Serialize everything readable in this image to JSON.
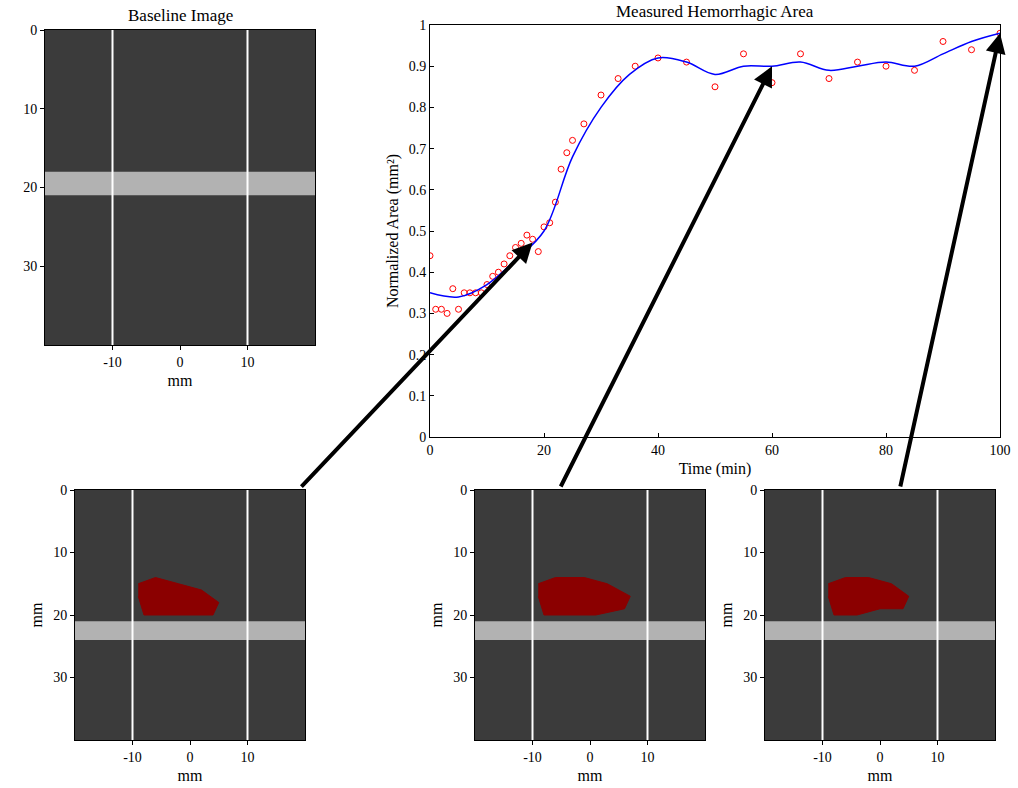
{
  "chart_data": [
    {
      "type": "line",
      "title": "Measured Hemorrhagic Area",
      "x_label": "Time (min)",
      "y_label": "Normalized Area (mm²)",
      "xlim": [
        0,
        100
      ],
      "ylim": [
        0,
        1
      ],
      "xticks": [
        0,
        20,
        40,
        60,
        80,
        100
      ],
      "yticks": [
        0,
        0.1,
        0.2,
        0.3,
        0.4,
        0.5,
        0.6,
        0.7,
        0.8,
        0.9,
        1
      ],
      "grid": false,
      "series": [
        {
          "type": "scatter",
          "marker": "circle-open",
          "color": "#ff0000",
          "x": [
            0,
            1,
            2,
            3,
            4,
            5,
            6,
            7,
            8,
            9,
            10,
            11,
            12,
            13,
            14,
            15,
            16,
            17,
            18,
            19,
            20,
            21,
            22,
            23,
            24,
            25,
            27,
            30,
            33,
            36,
            40,
            45,
            50,
            55,
            60,
            65,
            70,
            75,
            80,
            85,
            90,
            95,
            100
          ],
          "values": [
            0.44,
            0.31,
            0.31,
            0.3,
            0.36,
            0.31,
            0.35,
            0.35,
            0.35,
            0.35,
            0.37,
            0.39,
            0.4,
            0.42,
            0.44,
            0.46,
            0.47,
            0.49,
            0.48,
            0.45,
            0.51,
            0.52,
            0.57,
            0.65,
            0.69,
            0.72,
            0.76,
            0.83,
            0.87,
            0.9,
            0.92,
            0.91,
            0.85,
            0.93,
            0.86,
            0.93,
            0.87,
            0.91,
            0.9,
            0.89,
            0.96,
            0.94,
            0.98
          ]
        },
        {
          "type": "line",
          "line_style": "solid",
          "color": "#0000ff",
          "x": [
            0,
            5,
            10,
            15,
            20,
            25,
            30,
            35,
            40,
            45,
            50,
            55,
            60,
            65,
            70,
            75,
            80,
            85,
            90,
            95,
            100
          ],
          "values": [
            0.35,
            0.34,
            0.37,
            0.43,
            0.5,
            0.68,
            0.8,
            0.88,
            0.92,
            0.91,
            0.88,
            0.9,
            0.9,
            0.91,
            0.89,
            0.9,
            0.91,
            0.9,
            0.93,
            0.96,
            0.98
          ]
        }
      ]
    },
    {
      "type": "image",
      "title": "Baseline Image",
      "x_label": "mm",
      "xlim": [
        -20,
        20
      ],
      "ylim": [
        40,
        0
      ],
      "xticks": [
        -10,
        0,
        10
      ],
      "yticks": [
        0,
        10,
        20,
        30
      ],
      "lines_x": [
        -10,
        10
      ],
      "echo_band": [
        18,
        21
      ]
    },
    {
      "type": "image",
      "x_label": "mm",
      "y_label": "mm",
      "xlim": [
        -20,
        20
      ],
      "ylim": [
        40,
        0
      ],
      "xticks": [
        -10,
        0,
        10
      ],
      "yticks": [
        0,
        10,
        20,
        30
      ],
      "lines_x": [
        -10,
        10
      ],
      "echo_band": [
        21,
        24
      ],
      "time": 18,
      "region": {
        "color": "#8b0000",
        "x": [
          -9,
          -6,
          -2,
          2,
          5,
          4,
          0,
          -4,
          -8,
          -9
        ],
        "y": [
          15,
          14,
          15,
          16,
          18,
          20,
          20,
          20,
          20,
          17
        ]
      }
    },
    {
      "type": "image",
      "x_label": "mm",
      "y_label": "mm",
      "xlim": [
        -20,
        20
      ],
      "ylim": [
        40,
        0
      ],
      "xticks": [
        -10,
        0,
        10
      ],
      "yticks": [
        0,
        10,
        20,
        30
      ],
      "lines_x": [
        -10,
        10
      ],
      "echo_band": [
        21,
        24
      ],
      "time": 60,
      "region": {
        "color": "#8b0000",
        "x": [
          -9,
          -6,
          -1,
          3,
          7,
          6,
          1,
          -4,
          -8,
          -9
        ],
        "y": [
          15,
          14,
          14,
          15,
          17,
          19,
          20,
          20,
          20,
          17
        ]
      }
    },
    {
      "type": "image",
      "x_label": "mm",
      "y_label": "mm",
      "xlim": [
        -20,
        20
      ],
      "ylim": [
        40,
        0
      ],
      "xticks": [
        -10,
        0,
        10
      ],
      "yticks": [
        0,
        10,
        20,
        30
      ],
      "lines_x": [
        -10,
        10
      ],
      "echo_band": [
        21,
        24
      ],
      "time": 100,
      "region": {
        "color": "#8b0000",
        "x": [
          -9,
          -6,
          -2,
          2,
          5,
          4,
          0,
          -4,
          -8,
          -9
        ],
        "y": [
          15,
          14,
          14,
          15,
          17,
          19,
          19,
          20,
          20,
          17
        ]
      }
    }
  ]
}
